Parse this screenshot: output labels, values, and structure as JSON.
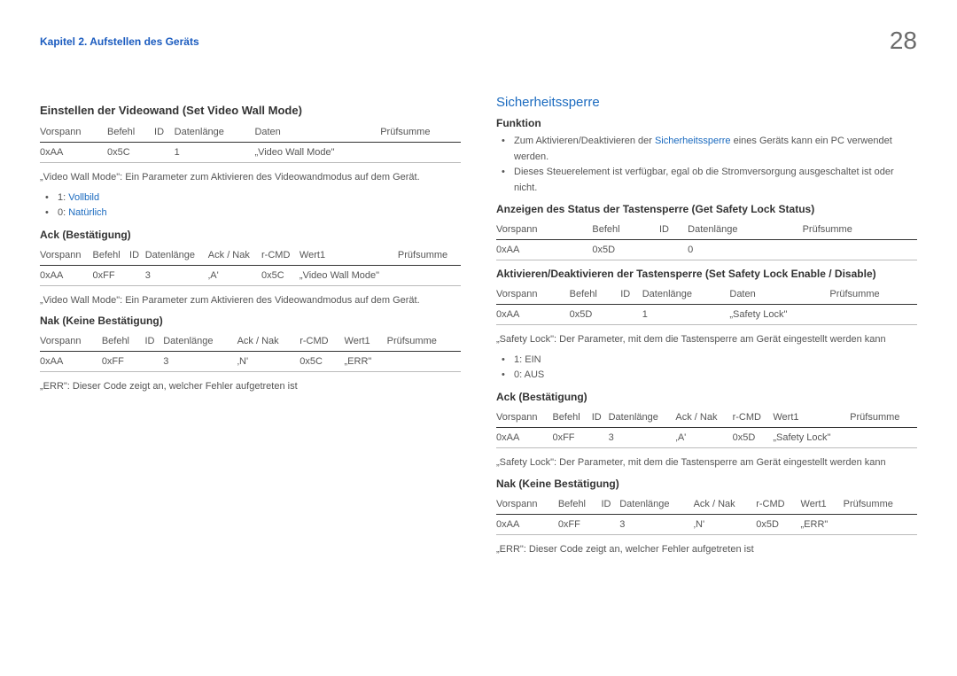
{
  "header": {
    "chapter": "Kapitel 2. Aufstellen des Geräts",
    "page": "28"
  },
  "left": {
    "h1": "Einstellen der Videowand (Set Video Wall Mode)",
    "t1": {
      "headers": [
        "Vorspann",
        "Befehl",
        "ID",
        "Datenlänge",
        "Daten",
        "Prüfsumme"
      ],
      "row": [
        "0xAA",
        "0x5C",
        "",
        "1",
        "„Video Wall Mode\"",
        ""
      ]
    },
    "note1": "„Video Wall Mode\": Ein Parameter zum Aktivieren des Videowandmodus auf dem Gerät.",
    "bullets1": {
      "a_prefix": "1: ",
      "a_link": "Vollbild",
      "b_prefix": "0: ",
      "b_link": "Natürlich"
    },
    "h2": "Ack (Bestätigung)",
    "t2": {
      "headers": [
        "Vorspann",
        "Befehl",
        "ID",
        "Datenlänge",
        "Ack / Nak",
        "r-CMD",
        "Wert1",
        "Prüfsumme"
      ],
      "row": [
        "0xAA",
        "0xFF",
        "",
        "3",
        "‚A'",
        "0x5C",
        "„Video Wall Mode\"",
        ""
      ]
    },
    "note2": "„Video Wall Mode\": Ein Parameter zum Aktivieren des Videowandmodus auf dem Gerät.",
    "h3": "Nak (Keine Bestätigung)",
    "t3": {
      "headers": [
        "Vorspann",
        "Befehl",
        "ID",
        "Datenlänge",
        "Ack / Nak",
        "r-CMD",
        "Wert1",
        "Prüfsumme"
      ],
      "row": [
        "0xAA",
        "0xFF",
        "",
        "3",
        "‚N'",
        "0x5C",
        "„ERR\"",
        ""
      ]
    },
    "note3": "„ERR\": Dieser Code zeigt an, welcher Fehler aufgetreten ist"
  },
  "right": {
    "h1": "Sicherheitssperre",
    "h2": "Funktion",
    "bullets1": {
      "a_pre": "Zum Aktivieren/Deaktivieren der ",
      "a_link": "Sicherheitssperre",
      "a_post": " eines Geräts kann ein PC verwendet werden.",
      "b": "Dieses Steuerelement ist verfügbar, egal ob die Stromversorgung ausgeschaltet ist oder nicht."
    },
    "h3": "Anzeigen des Status der Tastensperre (Get Safety Lock Status)",
    "t1": {
      "headers": [
        "Vorspann",
        "Befehl",
        "ID",
        "Datenlänge",
        "Prüfsumme"
      ],
      "row": [
        "0xAA",
        "0x5D",
        "",
        "0",
        ""
      ]
    },
    "h4": "Aktivieren/Deaktivieren der Tastensperre (Set Safety Lock Enable / Disable)",
    "t2": {
      "headers": [
        "Vorspann",
        "Befehl",
        "ID",
        "Datenlänge",
        "Daten",
        "Prüfsumme"
      ],
      "row": [
        "0xAA",
        "0x5D",
        "",
        "1",
        "„Safety Lock\"",
        ""
      ]
    },
    "note1": "„Safety Lock\": Der Parameter, mit dem die Tastensperre am Gerät eingestellt werden kann",
    "bullets2": {
      "a": "1: EIN",
      "b": "0: AUS"
    },
    "h5": "Ack (Bestätigung)",
    "t3": {
      "headers": [
        "Vorspann",
        "Befehl",
        "ID",
        "Datenlänge",
        "Ack / Nak",
        "r-CMD",
        "Wert1",
        "Prüfsumme"
      ],
      "row": [
        "0xAA",
        "0xFF",
        "",
        "3",
        "‚A'",
        "0x5D",
        "„Safety Lock\"",
        ""
      ]
    },
    "note2": "„Safety Lock\": Der Parameter, mit dem die Tastensperre am Gerät eingestellt werden kann",
    "h6": "Nak (Keine Bestätigung)",
    "t4": {
      "headers": [
        "Vorspann",
        "Befehl",
        "ID",
        "Datenlänge",
        "Ack / Nak",
        "r-CMD",
        "Wert1",
        "Prüfsumme"
      ],
      "row": [
        "0xAA",
        "0xFF",
        "",
        "3",
        "‚N'",
        "0x5D",
        "„ERR\"",
        ""
      ]
    },
    "note3": "„ERR\": Dieser Code zeigt an, welcher Fehler aufgetreten ist"
  }
}
